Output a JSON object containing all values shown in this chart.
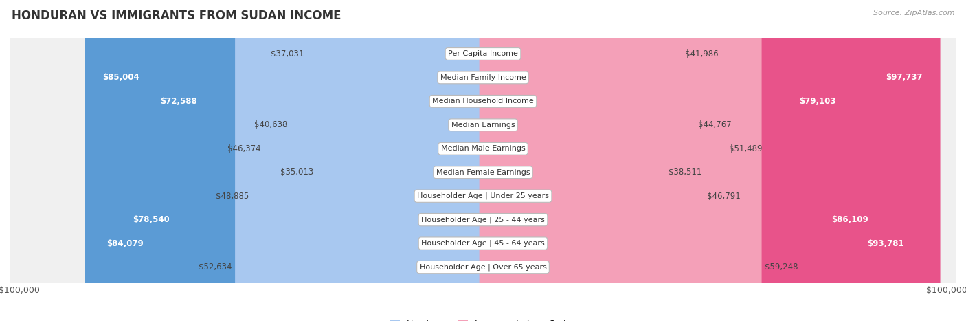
{
  "title": "HONDURAN VS IMMIGRANTS FROM SUDAN INCOME",
  "source": "Source: ZipAtlas.com",
  "categories": [
    "Per Capita Income",
    "Median Family Income",
    "Median Household Income",
    "Median Earnings",
    "Median Male Earnings",
    "Median Female Earnings",
    "Householder Age | Under 25 years",
    "Householder Age | 25 - 44 years",
    "Householder Age | 45 - 64 years",
    "Householder Age | Over 65 years"
  ],
  "honduran_values": [
    37031,
    85004,
    72588,
    40638,
    46374,
    35013,
    48885,
    78540,
    84079,
    52634
  ],
  "sudan_values": [
    41986,
    97737,
    79103,
    44767,
    51489,
    38511,
    46791,
    86109,
    93781,
    59248
  ],
  "honduran_labels": [
    "$37,031",
    "$85,004",
    "$72,588",
    "$40,638",
    "$46,374",
    "$35,013",
    "$48,885",
    "$78,540",
    "$84,079",
    "$52,634"
  ],
  "sudan_labels": [
    "$41,986",
    "$97,737",
    "$79,103",
    "$44,767",
    "$51,489",
    "$38,511",
    "$46,791",
    "$86,109",
    "$93,781",
    "$59,248"
  ],
  "honduran_color_light": "#a8c8f0",
  "honduran_color_dark": "#5b9bd5",
  "sudan_color_light": "#f4a0b8",
  "sudan_color_dark": "#e8538a",
  "axis_max": 100000,
  "background_color": "#ffffff",
  "title_fontsize": 12,
  "label_fontsize": 8.5,
  "category_fontsize": 8,
  "legend_fontsize": 9,
  "source_fontsize": 8,
  "inside_label_threshold": 60000,
  "row_bg_color": "#f0f0f0",
  "row_border_color": "#d8d8d8"
}
